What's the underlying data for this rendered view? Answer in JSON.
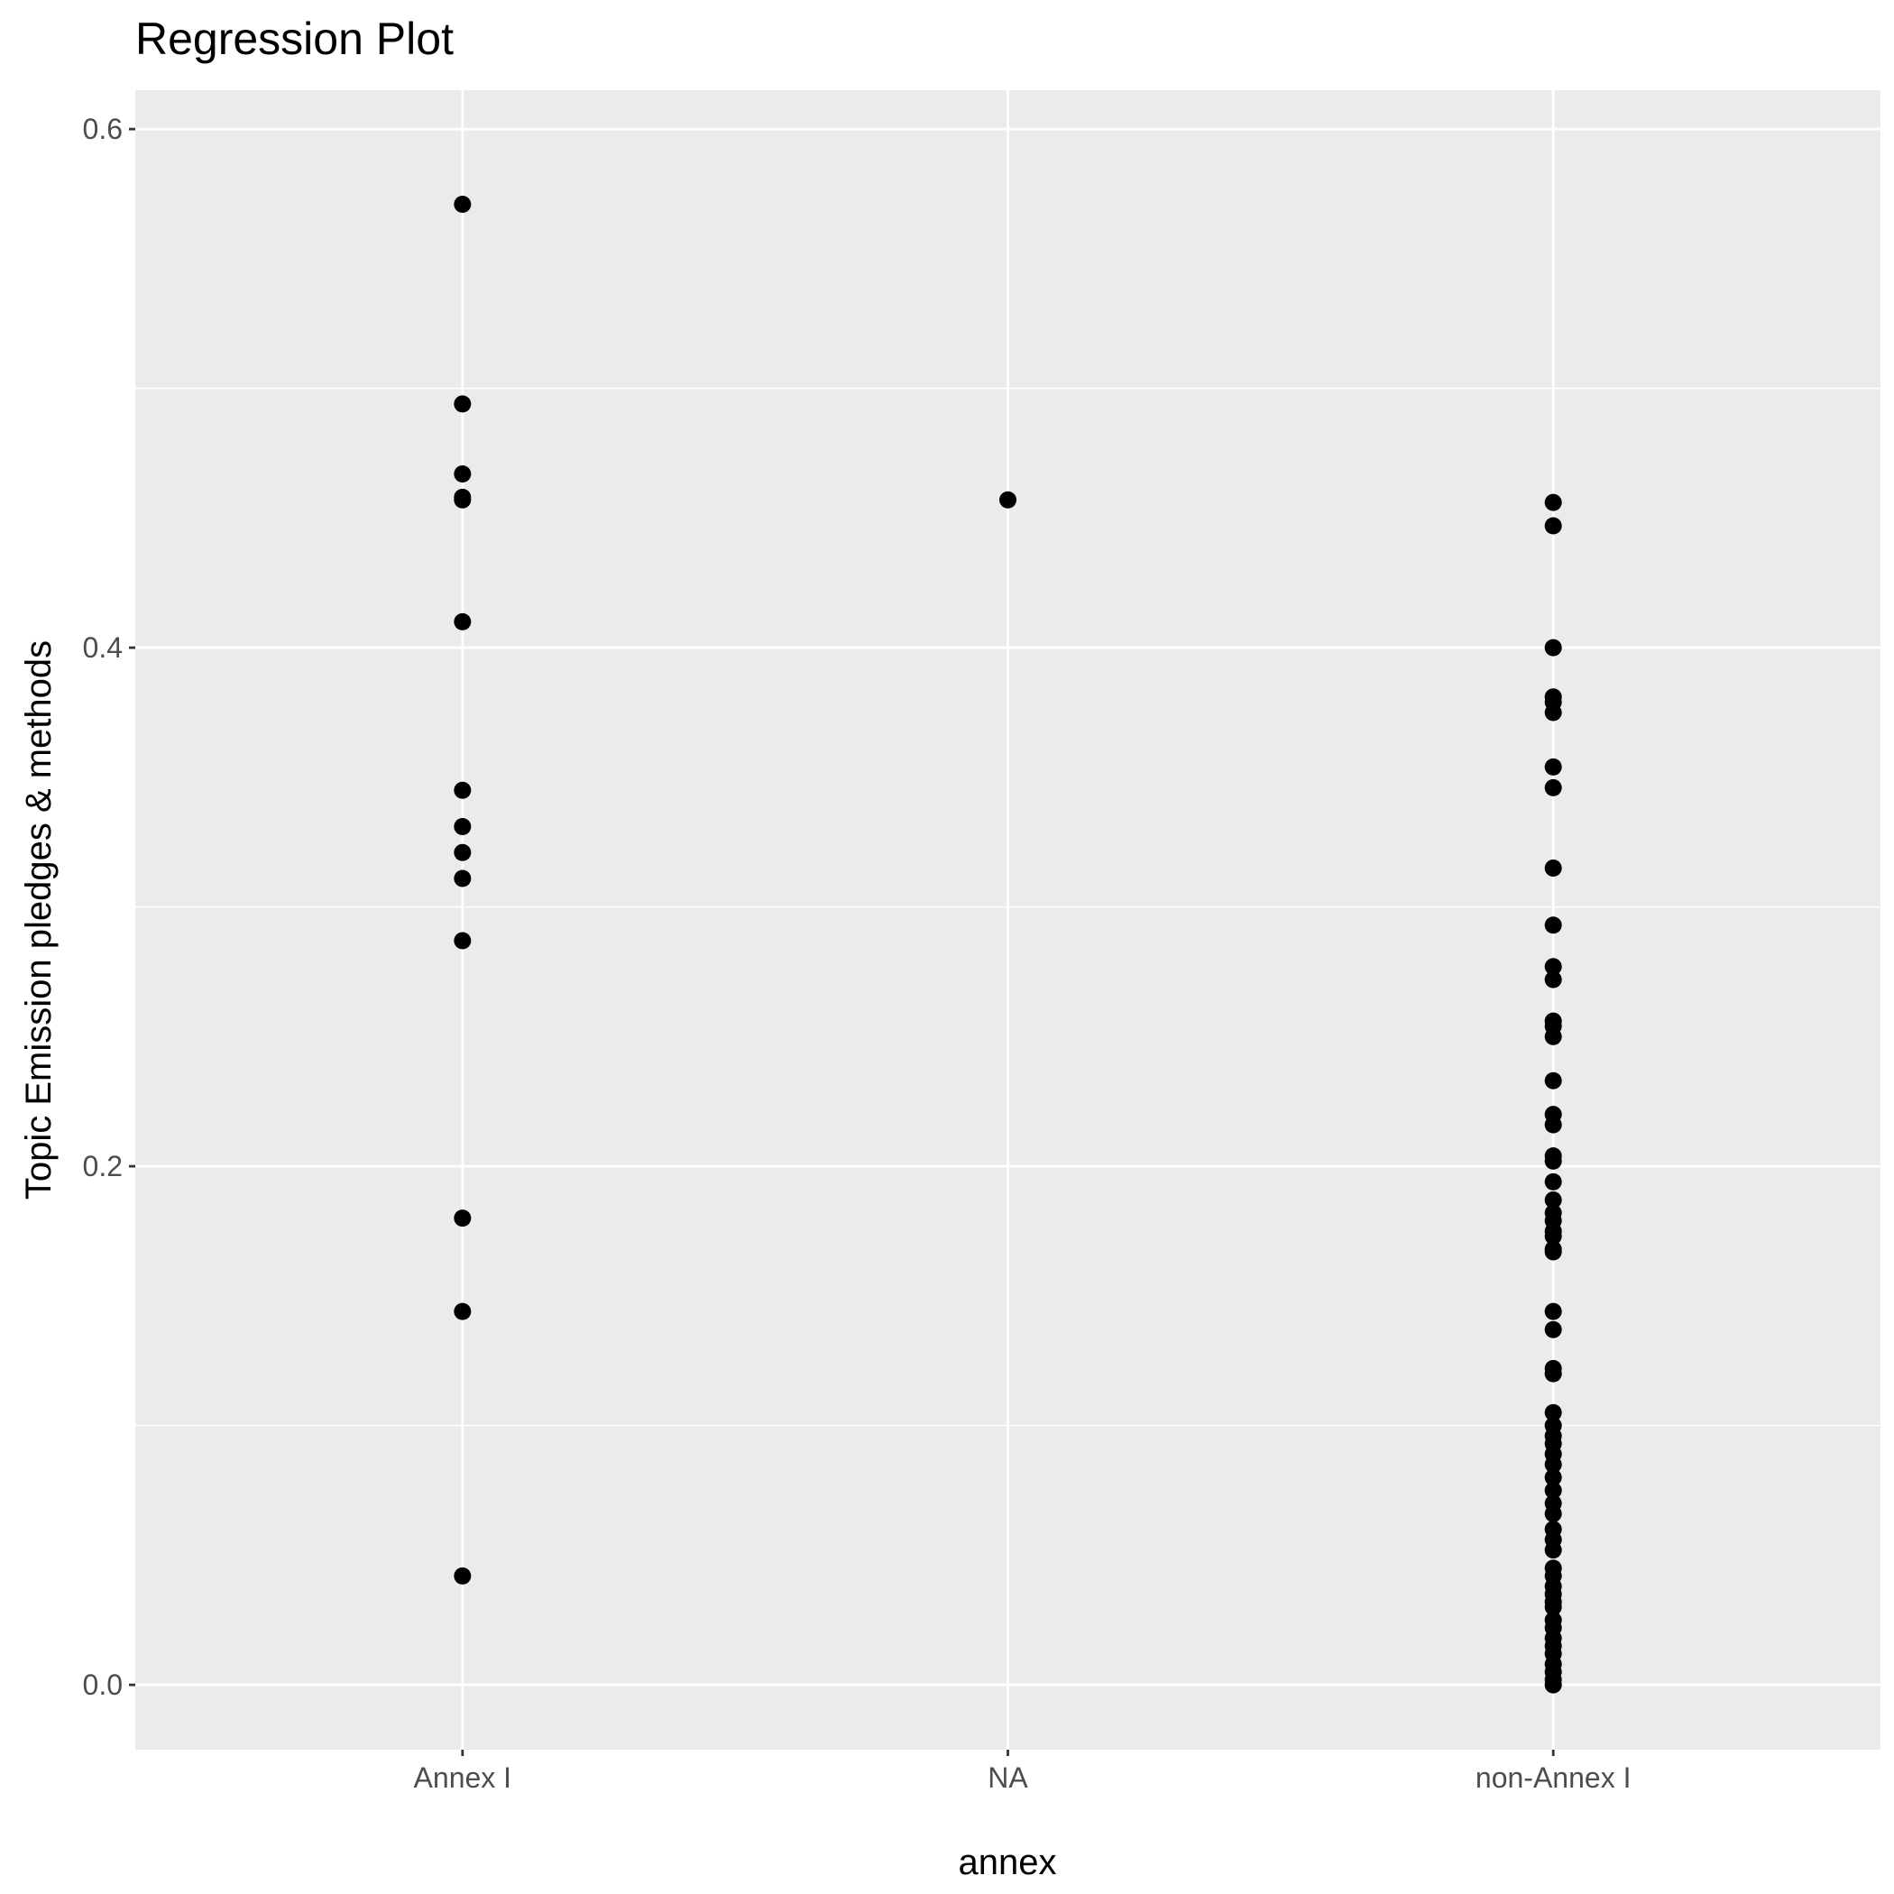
{
  "chart_data": {
    "type": "scatter",
    "title": "Regression Plot",
    "xlabel": "annex",
    "ylabel": "Topic Emission pledges & methods",
    "categories": [
      "Annex I",
      "NA",
      "non-Annex I"
    ],
    "ylim": [
      -0.025,
      0.615
    ],
    "y_ticks": [
      0.0,
      0.2,
      0.4,
      0.6
    ],
    "y_tick_labels": [
      "0.0",
      "0.2",
      "0.4",
      "0.6"
    ],
    "grid": true,
    "legend": "none",
    "series": [
      {
        "category": "Annex I",
        "values": [
          0.571,
          0.494,
          0.467,
          0.458,
          0.457,
          0.41,
          0.345,
          0.331,
          0.321,
          0.311,
          0.287,
          0.18,
          0.144,
          0.042
        ]
      },
      {
        "category": "NA",
        "values": [
          0.457
        ]
      },
      {
        "category": "non-Annex I",
        "values": [
          0.456,
          0.447,
          0.4,
          0.381,
          0.379,
          0.375,
          0.354,
          0.346,
          0.315,
          0.293,
          0.277,
          0.272,
          0.256,
          0.254,
          0.25,
          0.233,
          0.22,
          0.216,
          0.204,
          0.202,
          0.194,
          0.187,
          0.182,
          0.179,
          0.175,
          0.173,
          0.168,
          0.167,
          0.144,
          0.137,
          0.122,
          0.12,
          0.105,
          0.1,
          0.096,
          0.093,
          0.089,
          0.085,
          0.08,
          0.075,
          0.07,
          0.066,
          0.06,
          0.056,
          0.052,
          0.045,
          0.042,
          0.038,
          0.035,
          0.032,
          0.03,
          0.025,
          0.022,
          0.018,
          0.015,
          0.012,
          0.008,
          0.005,
          0.002,
          0.0
        ]
      }
    ]
  },
  "colors": {
    "panel_background": "#ebebeb",
    "grid_major": "#ffffff",
    "grid_minor": "#ffffff",
    "point": "#000000",
    "tick": "#333333"
  }
}
